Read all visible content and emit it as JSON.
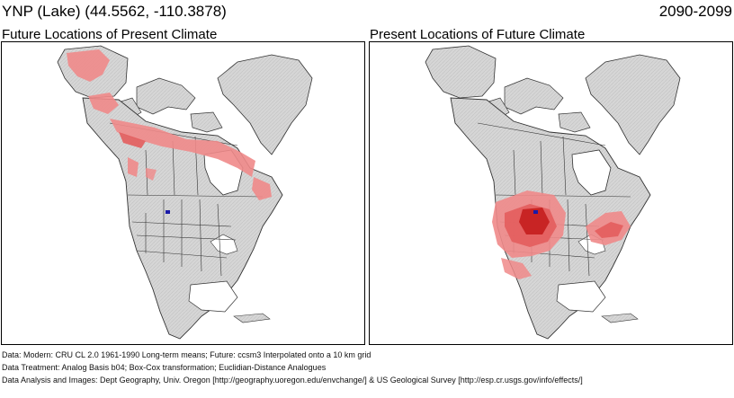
{
  "header": {
    "location": "YNP (Lake)  (44.5562, -110.3878)",
    "period": "2090-2099"
  },
  "panels": [
    {
      "title": "Future Locations of Present Climate"
    },
    {
      "title": "Present Locations of Future Climate"
    }
  ],
  "site_marker": {
    "label": "",
    "color": "#1a1aa8"
  },
  "colors": {
    "land": "#d9d9d9",
    "water": "#ffffff",
    "border": "#000000",
    "analog_light": "#f08a8a",
    "analog_medium": "#e35d5d",
    "analog_dark": "#c41e1e"
  },
  "footer": {
    "line1": "Data:  Modern: CRU CL 2.0 1961-1990 Long-term means; Future: ccsm3 Interpolated onto a 10 km grid",
    "line2": "Data Treatment:  Analog Basis b04; Box-Cox transformation; Euclidian-Distance Analogues",
    "line3": "Data Analysis and Images:  Dept Geography, Univ. Oregon [http://geography.uoregon.edu/envchange/] & US Geological Survey [http://esp.cr.usgs.gov/info/effects/]"
  }
}
